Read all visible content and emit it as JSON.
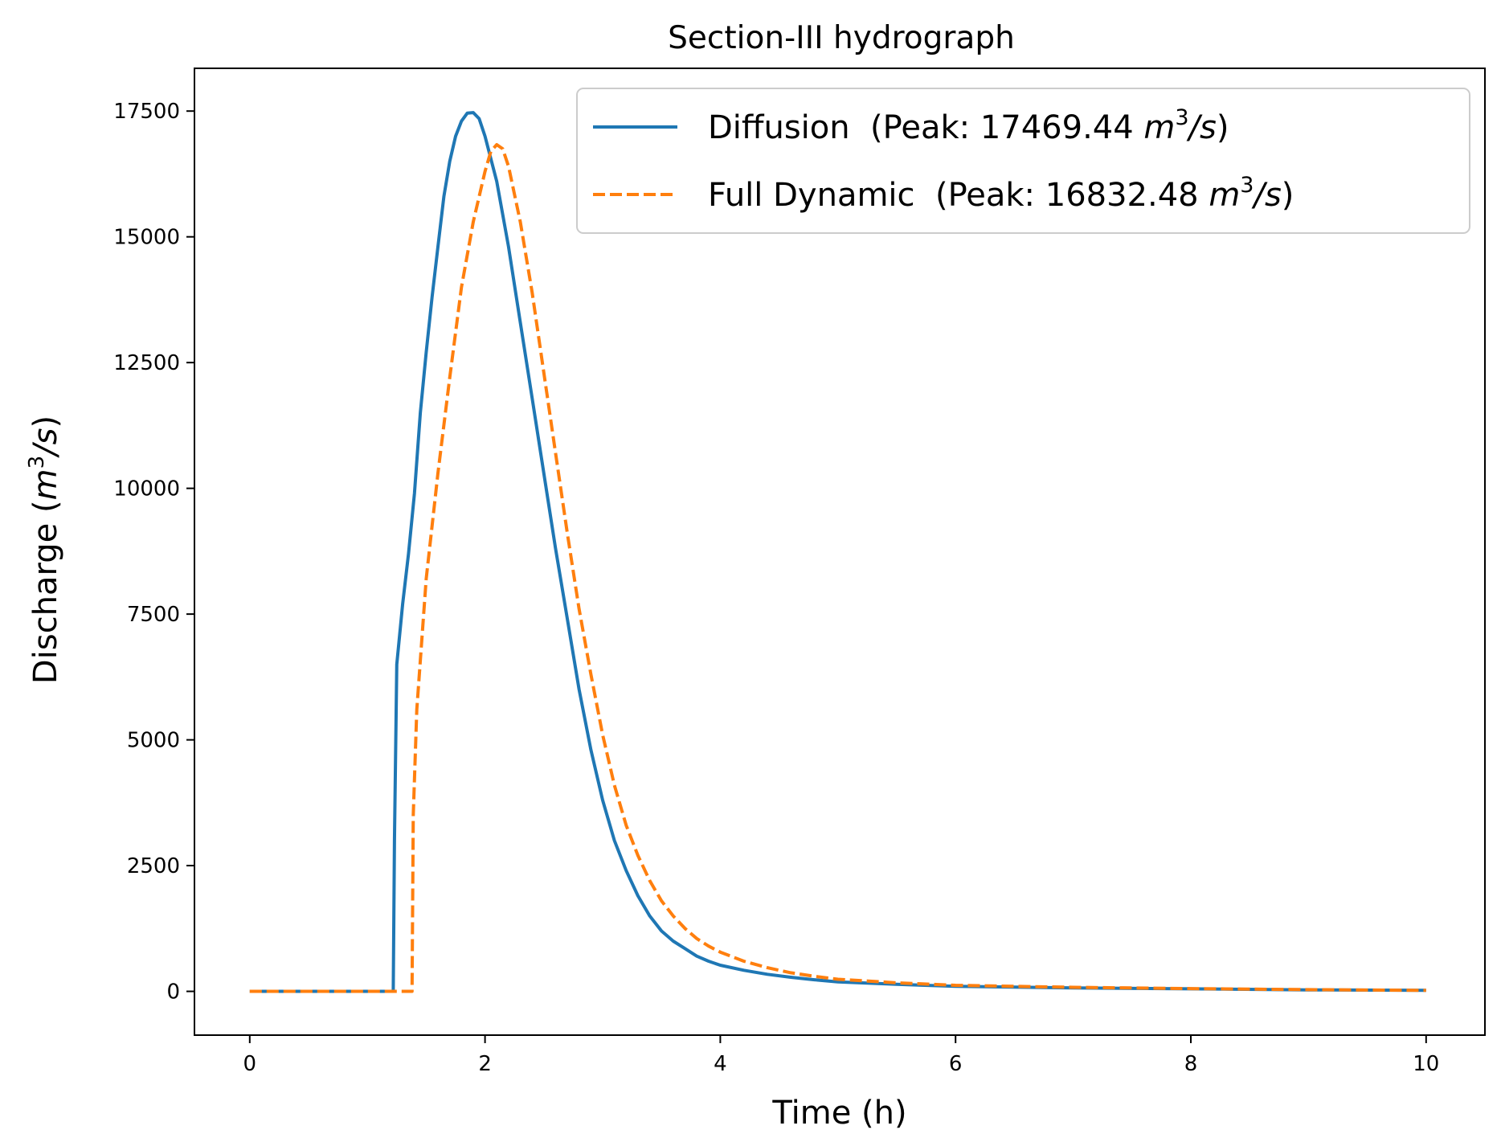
{
  "chart_data": {
    "type": "line",
    "title": "Section-III hydrograph",
    "xlabel": "Time (h)",
    "ylabel": {
      "prefix": "Discharge (",
      "unit_m": "m",
      "unit_exp": "3",
      "unit_s": "/s",
      "suffix": ")"
    },
    "xlim": [
      -0.47,
      10.5
    ],
    "ylim": [
      -870,
      18350
    ],
    "xticks": [
      0,
      2,
      4,
      6,
      8,
      10
    ],
    "yticks": [
      0,
      2500,
      5000,
      7500,
      10000,
      12500,
      15000,
      17500
    ],
    "grid": false,
    "legend": {
      "placement": "top-right"
    },
    "series": [
      {
        "name": "Diffusion",
        "legend_peak": "  (Peak: 17469.44 ",
        "color": "#1f77b4",
        "style": "solid",
        "x": [
          0,
          1.22,
          1.23,
          1.25,
          1.3,
          1.35,
          1.4,
          1.45,
          1.5,
          1.55,
          1.6,
          1.65,
          1.7,
          1.75,
          1.8,
          1.85,
          1.9,
          1.95,
          2.0,
          2.1,
          2.2,
          2.3,
          2.4,
          2.5,
          2.6,
          2.7,
          2.8,
          2.9,
          3.0,
          3.1,
          3.2,
          3.3,
          3.4,
          3.5,
          3.6,
          3.7,
          3.8,
          3.9,
          4.0,
          4.2,
          4.4,
          4.6,
          4.8,
          5.0,
          5.5,
          6.0,
          7.0,
          8.0,
          9.0,
          10.0
        ],
        "y": [
          0,
          0,
          3000,
          6500,
          7700,
          8700,
          9900,
          11500,
          12700,
          13800,
          14800,
          15800,
          16500,
          17000,
          17300,
          17460,
          17469,
          17350,
          17000,
          16100,
          14800,
          13300,
          11800,
          10300,
          8800,
          7400,
          6000,
          4800,
          3800,
          3000,
          2400,
          1900,
          1500,
          1200,
          1000,
          850,
          700,
          600,
          520,
          420,
          340,
          280,
          230,
          190,
          140,
          100,
          70,
          50,
          30,
          20
        ]
      },
      {
        "name": "Full Dynamic",
        "legend_peak": "  (Peak: 16832.48 ",
        "color": "#ff7f0e",
        "style": "dashed",
        "x": [
          0,
          1.38,
          1.39,
          1.42,
          1.5,
          1.6,
          1.7,
          1.8,
          1.9,
          2.0,
          2.05,
          2.1,
          2.15,
          2.2,
          2.3,
          2.4,
          2.5,
          2.6,
          2.7,
          2.8,
          2.9,
          3.0,
          3.1,
          3.2,
          3.3,
          3.4,
          3.5,
          3.6,
          3.7,
          3.8,
          3.9,
          4.0,
          4.2,
          4.4,
          4.6,
          4.8,
          5.0,
          5.5,
          6.0,
          7.0,
          8.0,
          9.0,
          10.0
        ],
        "y": [
          0,
          0,
          3500,
          5600,
          8200,
          10300,
          12200,
          14000,
          15300,
          16300,
          16700,
          16832,
          16750,
          16400,
          15300,
          13900,
          12300,
          10700,
          9100,
          7600,
          6300,
          5100,
          4100,
          3300,
          2700,
          2200,
          1800,
          1500,
          1250,
          1050,
          900,
          780,
          600,
          470,
          370,
          300,
          240,
          170,
          120,
          80,
          55,
          35,
          20
        ]
      }
    ],
    "legend_unit": {
      "m": "m",
      "exp": "3",
      "s": "/s",
      "close": ")"
    }
  }
}
